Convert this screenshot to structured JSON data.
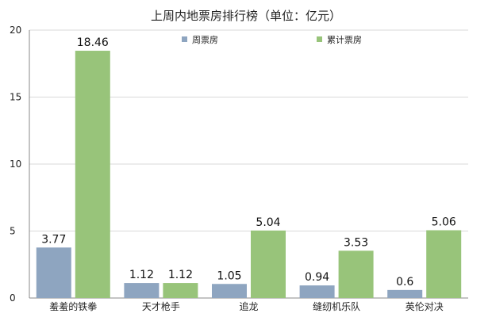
{
  "chart_data": {
    "type": "bar",
    "title": "上周内地票房排行榜（单位：亿元）",
    "categories": [
      "羞羞的铁拳",
      "天才枪手",
      "追龙",
      "缝纫机乐队",
      "英伦对决"
    ],
    "series": [
      {
        "name": "周票房",
        "values": [
          3.77,
          1.12,
          1.05,
          0.94,
          0.6
        ],
        "labels": [
          "3.77",
          "1.12",
          "1.05",
          "0.94",
          "0.6"
        ],
        "color": "#8EA5C0"
      },
      {
        "name": "累计票房",
        "values": [
          18.46,
          1.12,
          5.04,
          3.53,
          5.06
        ],
        "labels": [
          "18.46",
          "1.12",
          "5.04",
          "3.53",
          "5.06"
        ],
        "color": "#98C47A"
      }
    ],
    "ylim": [
      0,
      20
    ],
    "yticks": [
      0,
      5,
      10,
      15,
      20
    ],
    "grid": true,
    "legend_position": "top"
  }
}
